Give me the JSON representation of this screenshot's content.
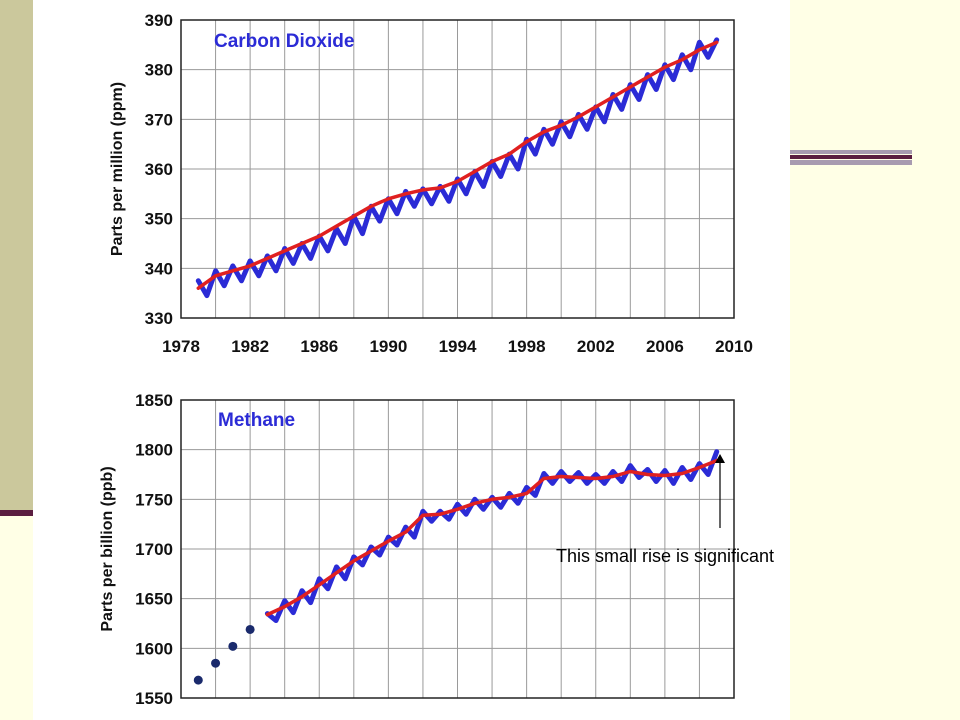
{
  "caption": "This small rise is significant",
  "chart_data": [
    {
      "type": "line",
      "title": "Carbon Dioxide",
      "ylabel": "Parts per million (ppm)",
      "xlabel": "",
      "xlim": [
        1978,
        2010
      ],
      "ylim": [
        330,
        390
      ],
      "grid": true,
      "x_ticks": [
        1978,
        1982,
        1986,
        1990,
        1994,
        1998,
        2002,
        2006,
        2010
      ],
      "y_ticks": [
        330,
        340,
        350,
        360,
        370,
        380,
        390
      ],
      "series": [
        {
          "color": "#2b2bd6",
          "style": "monthly-oscillating",
          "x": [
            1979.0,
            1979.5,
            1980.0,
            1980.5,
            1981.0,
            1981.5,
            1982.0,
            1982.5,
            1983.0,
            1983.5,
            1984.0,
            1984.5,
            1985.0,
            1985.5,
            1986.0,
            1986.5,
            1987.0,
            1987.5,
            1988.0,
            1988.5,
            1989.0,
            1989.5,
            1990.0,
            1990.5,
            1991.0,
            1991.5,
            1992.0,
            1992.5,
            1993.0,
            1993.5,
            1994.0,
            1994.5,
            1995.0,
            1995.5,
            1996.0,
            1996.5,
            1997.0,
            1997.5,
            1998.0,
            1998.5,
            1999.0,
            1999.5,
            2000.0,
            2000.5,
            2001.0,
            2001.5,
            2002.0,
            2002.5,
            2003.0,
            2003.5,
            2004.0,
            2004.5,
            2005.0,
            2005.5,
            2006.0,
            2006.5,
            2007.0,
            2007.5,
            2008.0,
            2008.5,
            2009.0
          ],
          "y": [
            337.5,
            334.5,
            339.5,
            336.5,
            340.5,
            337.5,
            341.5,
            338.5,
            342.5,
            339.5,
            344.0,
            341.0,
            345.0,
            342.0,
            346.5,
            343.5,
            348.0,
            345.0,
            350.5,
            347.0,
            352.5,
            349.5,
            354.0,
            351.0,
            355.5,
            352.5,
            356.0,
            353.0,
            356.5,
            353.5,
            358.0,
            355.0,
            359.5,
            356.5,
            361.5,
            358.5,
            363.0,
            360.0,
            366.0,
            363.0,
            368.0,
            365.0,
            369.5,
            366.5,
            371.0,
            368.0,
            372.5,
            369.5,
            375.0,
            372.0,
            377.0,
            374.0,
            379.0,
            376.0,
            381.0,
            378.0,
            383.0,
            380.0,
            385.5,
            382.5,
            386.0
          ]
        },
        {
          "color": "#e02020",
          "style": "trend",
          "x": [
            1979,
            1980,
            1981,
            1982,
            1983,
            1984,
            1985,
            1986,
            1987,
            1988,
            1989,
            1990,
            1991,
            1992,
            1993,
            1994,
            1995,
            1996,
            1997,
            1998,
            1999,
            2000,
            2001,
            2002,
            2003,
            2004,
            2005,
            2006,
            2007,
            2008,
            2009
          ],
          "y": [
            336.0,
            338.5,
            339.5,
            340.5,
            342.0,
            343.5,
            345.0,
            346.5,
            348.5,
            350.5,
            352.5,
            354.0,
            355.0,
            355.8,
            356.2,
            357.5,
            359.5,
            361.5,
            363.0,
            365.5,
            367.5,
            368.8,
            370.5,
            372.5,
            374.5,
            376.5,
            378.5,
            380.5,
            382.0,
            384.0,
            385.5
          ]
        }
      ]
    },
    {
      "type": "line",
      "title": "Methane",
      "ylabel": "Parts per billion (ppb)",
      "xlabel": "",
      "xlim": [
        1978,
        2010
      ],
      "ylim": [
        1550,
        1850
      ],
      "grid": true,
      "y_ticks": [
        1550,
        1600,
        1650,
        1700,
        1750,
        1800,
        1850
      ],
      "series": [
        {
          "color": "#2b2bd6",
          "style": "monthly-oscillating",
          "x": [
            1983.0,
            1983.5,
            1984.0,
            1984.5,
            1985.0,
            1985.5,
            1986.0,
            1986.5,
            1987.0,
            1987.5,
            1988.0,
            1988.5,
            1989.0,
            1989.5,
            1990.0,
            1990.5,
            1991.0,
            1991.5,
            1992.0,
            1992.5,
            1993.0,
            1993.5,
            1994.0,
            1994.5,
            1995.0,
            1995.5,
            1996.0,
            1996.5,
            1997.0,
            1997.5,
            1998.0,
            1998.5,
            1999.0,
            1999.5,
            2000.0,
            2000.5,
            2001.0,
            2001.5,
            2002.0,
            2002.5,
            2003.0,
            2003.5,
            2004.0,
            2004.5,
            2005.0,
            2005.5,
            2006.0,
            2006.5,
            2007.0,
            2007.5,
            2008.0,
            2008.5,
            2009.0
          ],
          "y": [
            1635,
            1628,
            1648,
            1636,
            1658,
            1646,
            1670,
            1660,
            1682,
            1670,
            1692,
            1684,
            1702,
            1694,
            1712,
            1704,
            1722,
            1712,
            1738,
            1728,
            1738,
            1730,
            1745,
            1735,
            1750,
            1740,
            1752,
            1742,
            1756,
            1746,
            1762,
            1754,
            1776,
            1766,
            1778,
            1768,
            1777,
            1766,
            1775,
            1766,
            1778,
            1768,
            1784,
            1772,
            1780,
            1768,
            1779,
            1766,
            1782,
            1770,
            1786,
            1775,
            1798
          ]
        },
        {
          "color": "#e02020",
          "style": "trend",
          "x": [
            1983,
            1984,
            1985,
            1986,
            1987,
            1988,
            1989,
            1990,
            1991,
            1992,
            1993,
            1994,
            1995,
            1996,
            1997,
            1998,
            1999,
            2000,
            2001,
            2002,
            2003,
            2004,
            2005,
            2006,
            2007,
            2008,
            2009
          ],
          "y": [
            1634,
            1642,
            1652,
            1664,
            1676,
            1688,
            1698,
            1708,
            1717,
            1734,
            1735,
            1740,
            1746,
            1750,
            1752,
            1756,
            1771,
            1773,
            1772,
            1771,
            1773,
            1778,
            1775,
            1774,
            1776,
            1782,
            1789
          ]
        },
        {
          "color": "#1a2a6c",
          "style": "points",
          "x": [
            1979,
            1980,
            1981,
            1982
          ],
          "y": [
            1568,
            1585,
            1602,
            1619
          ]
        }
      ]
    }
  ]
}
